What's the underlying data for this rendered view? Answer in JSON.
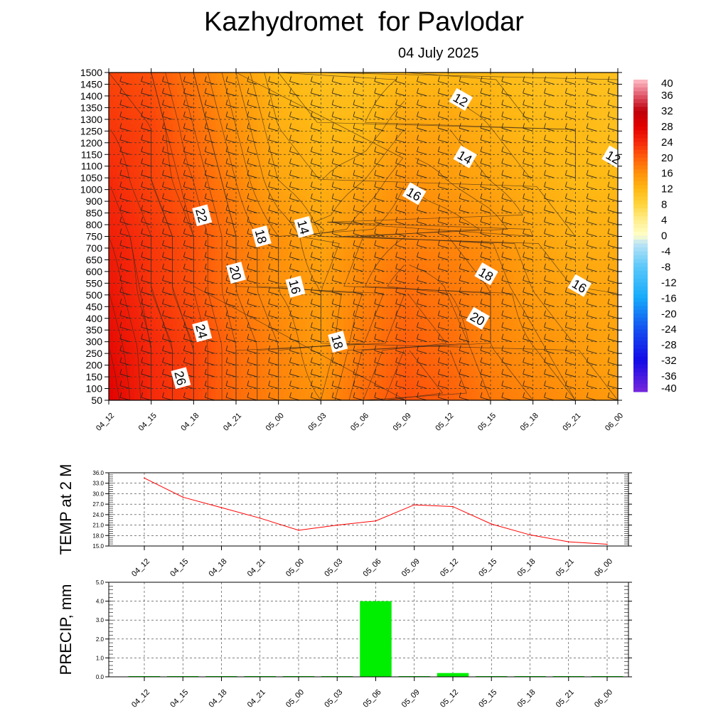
{
  "title": "Kazhydromet  for Pavlodar",
  "subtitle": "04 July 2025",
  "chart_data": [
    {
      "type": "heatmap",
      "x_ticks": [
        "04_12",
        "04_15",
        "04_18",
        "04_21",
        "05_00",
        "05_03",
        "05_06",
        "05_09",
        "05_12",
        "05_15",
        "05_18",
        "05_21",
        "06_00"
      ],
      "y_ticks": [
        "50",
        "100",
        "150",
        "200",
        "250",
        "300",
        "350",
        "400",
        "450",
        "500",
        "550",
        "600",
        "650",
        "700",
        "750",
        "800",
        "850",
        "900",
        "1000",
        "1050",
        "1100",
        "1150",
        "1200",
        "1250",
        "1300",
        "1350",
        "1400",
        "1450",
        "1500"
      ],
      "colorbar_ticks": [
        "40",
        "36",
        "32",
        "28",
        "24",
        "20",
        "16",
        "12",
        "8",
        "4",
        "0",
        "-4",
        "-8",
        "-12",
        "-16",
        "-20",
        "-24",
        "-28",
        "-32",
        "-36",
        "-40"
      ],
      "colorbar_range": [
        -40,
        40
      ],
      "grid": true,
      "field": [
        [
          28,
          24,
          22,
          19,
          17,
          16,
          19,
          21,
          20,
          18,
          17,
          16,
          15
        ],
        [
          27,
          24,
          22,
          19,
          17,
          15,
          18,
          20,
          19,
          17,
          16,
          15,
          14
        ],
        [
          26,
          23,
          21,
          18,
          16,
          15,
          17,
          19,
          18,
          17,
          15,
          14,
          14
        ],
        [
          25,
          23,
          21,
          18,
          16,
          14,
          16,
          17,
          17,
          16,
          14,
          13,
          13
        ],
        [
          24,
          22,
          20,
          17,
          14,
          13,
          14,
          16,
          15,
          14,
          13,
          12,
          12
        ],
        [
          23,
          22,
          19,
          16,
          13,
          12,
          12,
          14,
          14,
          13,
          12,
          12,
          11
        ],
        [
          22,
          21,
          18,
          15,
          12,
          11,
          11,
          12,
          12,
          12,
          11,
          11,
          11
        ]
      ],
      "contour_labels": [
        {
          "text": "12",
          "x": 8.3,
          "y": 1385
        },
        {
          "text": "14",
          "x": 8.4,
          "y": 1140
        },
        {
          "text": "12",
          "x": 11.9,
          "y": 1140
        },
        {
          "text": "16",
          "x": 7.2,
          "y": 965
        },
        {
          "text": "22",
          "x": 2.2,
          "y": 840
        },
        {
          "text": "14",
          "x": 4.6,
          "y": 790
        },
        {
          "text": "18",
          "x": 3.6,
          "y": 750
        },
        {
          "text": "20",
          "x": 3.0,
          "y": 595
        },
        {
          "text": "18",
          "x": 8.9,
          "y": 590
        },
        {
          "text": "16",
          "x": 4.4,
          "y": 535
        },
        {
          "text": "16",
          "x": 11.1,
          "y": 540
        },
        {
          "text": "20",
          "x": 8.7,
          "y": 400
        },
        {
          "text": "24",
          "x": 2.2,
          "y": 345
        },
        {
          "text": "18",
          "x": 5.4,
          "y": 300
        },
        {
          "text": "26",
          "x": 1.7,
          "y": 145
        }
      ]
    },
    {
      "type": "line",
      "ylabel": "TEMP at 2 M",
      "x": [
        "04_12",
        "04_15",
        "04_18",
        "04_21",
        "05_00",
        "05_03",
        "05_06",
        "05_09",
        "05_12",
        "05_15",
        "05_18",
        "05_21",
        "06_00"
      ],
      "values": [
        34.5,
        29.0,
        26.0,
        23.0,
        19.5,
        21.0,
        22.2,
        26.8,
        26.3,
        21.3,
        18.2,
        16.2,
        15.5
      ],
      "y_ticks": [
        "36.0",
        "33.0",
        "30.0",
        "27.0",
        "24.0",
        "21.0",
        "18.0",
        "15.0"
      ],
      "ylim": [
        15,
        36
      ],
      "line_color": "#ff0000",
      "grid": true
    },
    {
      "type": "bar",
      "ylabel": "PRECIP, mm",
      "x": [
        "04_12",
        "04_15",
        "04_18",
        "04_21",
        "05_00",
        "05_03",
        "05_06",
        "05_09",
        "05_12",
        "05_15",
        "05_18",
        "05_21",
        "06_00"
      ],
      "values": [
        0.0,
        0.0,
        0.0,
        0.0,
        0.0,
        0.0,
        4.0,
        0.0,
        0.2,
        0.0,
        0.0,
        0.0,
        0.0
      ],
      "y_ticks": [
        "5.0",
        "4.0",
        "3.0",
        "2.0",
        "1.0",
        "0.0"
      ],
      "ylim": [
        0,
        5
      ],
      "bar_color": "#00ee00",
      "grid": true
    }
  ]
}
